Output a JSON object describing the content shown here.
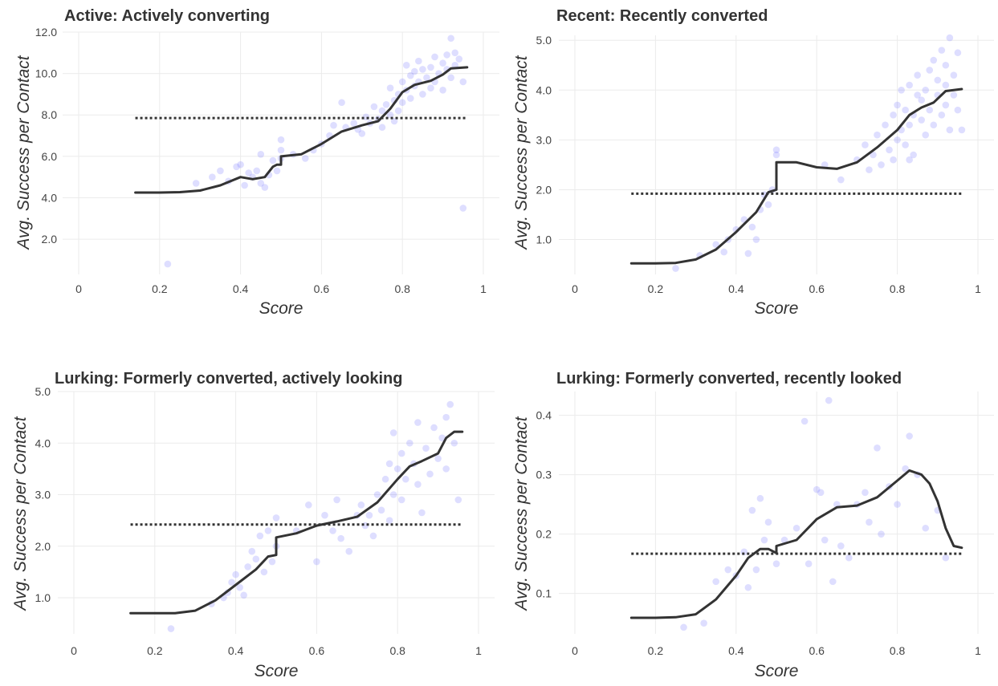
{
  "colors": {
    "point": "#6a6aff",
    "line": "#333333",
    "grid": "#ebebeb"
  },
  "chart_data": [
    {
      "type": "scatter",
      "title": "Active: Actively converting",
      "xlabel": "Score",
      "ylabel": "Avg. Success per Contact",
      "xlim": [
        0,
        1
      ],
      "ylim": [
        0.3,
        12.0
      ],
      "x_ticks": [
        0,
        0.2,
        0.4,
        0.6,
        0.8,
        1
      ],
      "x_tick_labels": [
        "0",
        "0.2",
        "0.4",
        "0.6",
        "0.8",
        "1"
      ],
      "y_ticks": [
        2,
        4,
        6,
        8,
        10,
        12
      ],
      "y_tick_labels": [
        "2.0",
        "4.0",
        "6.0",
        "8.0",
        "10.0",
        "12.0"
      ],
      "grid": true,
      "reference_line": {
        "y": 7.85,
        "x_range": [
          0.14,
          0.96
        ],
        "style": "dotted"
      },
      "trend_line": {
        "x": [
          0.14,
          0.2,
          0.25,
          0.3,
          0.35,
          0.4,
          0.43,
          0.46,
          0.48,
          0.49,
          0.5,
          0.5,
          0.55,
          0.6,
          0.65,
          0.7,
          0.74,
          0.77,
          0.8,
          0.83,
          0.87,
          0.9,
          0.92,
          0.96
        ],
        "y": [
          4.25,
          4.25,
          4.27,
          4.35,
          4.6,
          5.0,
          4.9,
          5.0,
          5.5,
          5.6,
          5.6,
          6.0,
          6.1,
          6.6,
          7.2,
          7.5,
          7.7,
          8.3,
          9.1,
          9.45,
          9.65,
          9.95,
          10.25,
          10.3
        ]
      },
      "points": [
        [
          0.22,
          0.8
        ],
        [
          0.29,
          4.7
        ],
        [
          0.33,
          5.0
        ],
        [
          0.35,
          5.3
        ],
        [
          0.37,
          4.8
        ],
        [
          0.39,
          5.5
        ],
        [
          0.4,
          5.6
        ],
        [
          0.41,
          4.6
        ],
        [
          0.42,
          5.2
        ],
        [
          0.43,
          5.0
        ],
        [
          0.44,
          5.3
        ],
        [
          0.45,
          4.7
        ],
        [
          0.45,
          6.1
        ],
        [
          0.46,
          4.5
        ],
        [
          0.47,
          5.1
        ],
        [
          0.48,
          5.8
        ],
        [
          0.49,
          5.3
        ],
        [
          0.5,
          6.3
        ],
        [
          0.5,
          6.8
        ],
        [
          0.5,
          5.9
        ],
        [
          0.53,
          6.1
        ],
        [
          0.56,
          5.9
        ],
        [
          0.58,
          6.3
        ],
        [
          0.6,
          6.6
        ],
        [
          0.62,
          7.0
        ],
        [
          0.63,
          7.5
        ],
        [
          0.65,
          8.6
        ],
        [
          0.66,
          7.4
        ],
        [
          0.68,
          7.6
        ],
        [
          0.69,
          7.3
        ],
        [
          0.7,
          7.1
        ],
        [
          0.71,
          7.9
        ],
        [
          0.72,
          7.6
        ],
        [
          0.73,
          8.4
        ],
        [
          0.74,
          7.8
        ],
        [
          0.75,
          8.2
        ],
        [
          0.75,
          7.4
        ],
        [
          0.76,
          8.5
        ],
        [
          0.77,
          8.0
        ],
        [
          0.77,
          9.3
        ],
        [
          0.78,
          8.7
        ],
        [
          0.78,
          7.7
        ],
        [
          0.79,
          9.0
        ],
        [
          0.79,
          8.2
        ],
        [
          0.8,
          8.6
        ],
        [
          0.8,
          9.6
        ],
        [
          0.81,
          10.4
        ],
        [
          0.81,
          9.2
        ],
        [
          0.82,
          9.9
        ],
        [
          0.82,
          8.8
        ],
        [
          0.83,
          10.1
        ],
        [
          0.83,
          9.4
        ],
        [
          0.84,
          9.6
        ],
        [
          0.84,
          10.6
        ],
        [
          0.85,
          9.0
        ],
        [
          0.85,
          10.2
        ],
        [
          0.86,
          9.8
        ],
        [
          0.87,
          10.3
        ],
        [
          0.87,
          9.3
        ],
        [
          0.88,
          10.8
        ],
        [
          0.88,
          9.6
        ],
        [
          0.89,
          10.0
        ],
        [
          0.9,
          10.5
        ],
        [
          0.9,
          9.2
        ],
        [
          0.91,
          10.9
        ],
        [
          0.91,
          10.2
        ],
        [
          0.92,
          11.7
        ],
        [
          0.92,
          9.8
        ],
        [
          0.93,
          11.0
        ],
        [
          0.93,
          10.4
        ],
        [
          0.94,
          10.7
        ],
        [
          0.95,
          9.6
        ],
        [
          0.95,
          3.5
        ]
      ]
    },
    {
      "type": "scatter",
      "title": "Recent: Recently converted",
      "xlabel": "Score",
      "ylabel": "Avg. Success per Contact",
      "xlim": [
        0,
        1
      ],
      "ylim": [
        0.3,
        5.1
      ],
      "x_ticks": [
        0,
        0.2,
        0.4,
        0.6,
        0.8,
        1
      ],
      "x_tick_labels": [
        "0",
        "0.2",
        "0.4",
        "0.6",
        "0.8",
        "1"
      ],
      "y_ticks": [
        1,
        2,
        3,
        4,
        5
      ],
      "y_tick_labels": [
        "1.0",
        "2.0",
        "3.0",
        "4.0",
        "5.0"
      ],
      "grid": true,
      "reference_line": {
        "y": 1.92,
        "x_range": [
          0.14,
          0.96
        ],
        "style": "dotted"
      },
      "trend_line": {
        "x": [
          0.14,
          0.2,
          0.25,
          0.3,
          0.35,
          0.4,
          0.45,
          0.48,
          0.5,
          0.5,
          0.55,
          0.6,
          0.65,
          0.7,
          0.75,
          0.8,
          0.83,
          0.86,
          0.89,
          0.92,
          0.96
        ],
        "y": [
          0.52,
          0.52,
          0.53,
          0.6,
          0.8,
          1.15,
          1.55,
          1.95,
          2.0,
          2.55,
          2.55,
          2.45,
          2.42,
          2.55,
          2.85,
          3.2,
          3.5,
          3.65,
          3.75,
          3.98,
          4.02
        ]
      },
      "points": [
        [
          0.25,
          0.42
        ],
        [
          0.31,
          0.68
        ],
        [
          0.35,
          0.9
        ],
        [
          0.37,
          0.75
        ],
        [
          0.38,
          1.0
        ],
        [
          0.4,
          1.2
        ],
        [
          0.42,
          1.4
        ],
        [
          0.43,
          0.72
        ],
        [
          0.44,
          1.25
        ],
        [
          0.45,
          1.0
        ],
        [
          0.46,
          1.6
        ],
        [
          0.47,
          1.9
        ],
        [
          0.48,
          1.7
        ],
        [
          0.49,
          2.0
        ],
        [
          0.5,
          2.8
        ],
        [
          0.5,
          2.7
        ],
        [
          0.62,
          2.5
        ],
        [
          0.66,
          2.2
        ],
        [
          0.7,
          2.6
        ],
        [
          0.72,
          2.9
        ],
        [
          0.73,
          2.4
        ],
        [
          0.74,
          2.7
        ],
        [
          0.75,
          3.1
        ],
        [
          0.76,
          2.5
        ],
        [
          0.77,
          3.3
        ],
        [
          0.78,
          2.8
        ],
        [
          0.79,
          3.5
        ],
        [
          0.8,
          3.0
        ],
        [
          0.8,
          3.7
        ],
        [
          0.81,
          3.2
        ],
        [
          0.81,
          4.0
        ],
        [
          0.82,
          2.9
        ],
        [
          0.82,
          3.6
        ],
        [
          0.83,
          3.3
        ],
        [
          0.83,
          4.1
        ],
        [
          0.84,
          3.5
        ],
        [
          0.84,
          2.7
        ],
        [
          0.85,
          3.9
        ],
        [
          0.85,
          4.3
        ],
        [
          0.86,
          3.4
        ],
        [
          0.86,
          3.8
        ],
        [
          0.87,
          4.0
        ],
        [
          0.87,
          3.1
        ],
        [
          0.88,
          4.4
        ],
        [
          0.88,
          3.6
        ],
        [
          0.89,
          4.6
        ],
        [
          0.89,
          3.3
        ],
        [
          0.9,
          3.9
        ],
        [
          0.9,
          4.2
        ],
        [
          0.91,
          3.5
        ],
        [
          0.91,
          4.8
        ],
        [
          0.92,
          4.1
        ],
        [
          0.92,
          3.7
        ],
        [
          0.92,
          4.5
        ],
        [
          0.93,
          5.05
        ],
        [
          0.93,
          3.2
        ],
        [
          0.94,
          4.3
        ],
        [
          0.94,
          3.9
        ],
        [
          0.95,
          4.75
        ],
        [
          0.95,
          3.6
        ],
        [
          0.96,
          3.2
        ],
        [
          0.79,
          2.6
        ],
        [
          0.83,
          2.6
        ]
      ]
    },
    {
      "type": "scatter",
      "title": "Lurking: Formerly converted, actively looking",
      "xlabel": "Score",
      "ylabel": "Avg. Success per Contact",
      "xlim": [
        0,
        1
      ],
      "ylim": [
        0.3,
        5.0
      ],
      "x_ticks": [
        0,
        0.2,
        0.4,
        0.6,
        0.8,
        1
      ],
      "x_tick_labels": [
        "0",
        "0.2",
        "0.4",
        "0.6",
        "0.8",
        "1"
      ],
      "y_ticks": [
        1,
        2,
        3,
        4,
        5
      ],
      "y_tick_labels": [
        "1.0",
        "2.0",
        "3.0",
        "4.0",
        "5.0"
      ],
      "grid": true,
      "reference_line": {
        "y": 2.42,
        "x_range": [
          0.14,
          0.96
        ],
        "style": "dotted"
      },
      "trend_line": {
        "x": [
          0.14,
          0.2,
          0.25,
          0.3,
          0.35,
          0.4,
          0.45,
          0.48,
          0.5,
          0.5,
          0.55,
          0.6,
          0.65,
          0.7,
          0.75,
          0.8,
          0.83,
          0.86,
          0.9,
          0.92,
          0.94,
          0.96
        ],
        "y": [
          0.7,
          0.7,
          0.7,
          0.75,
          0.95,
          1.25,
          1.55,
          1.8,
          1.83,
          2.17,
          2.25,
          2.4,
          2.48,
          2.57,
          2.85,
          3.3,
          3.55,
          3.65,
          3.8,
          4.1,
          4.22,
          4.22
        ]
      },
      "points": [
        [
          0.24,
          0.4
        ],
        [
          0.34,
          0.88
        ],
        [
          0.37,
          1.0
        ],
        [
          0.38,
          1.1
        ],
        [
          0.39,
          1.3
        ],
        [
          0.4,
          1.45
        ],
        [
          0.41,
          1.2
        ],
        [
          0.42,
          1.05
        ],
        [
          0.43,
          1.6
        ],
        [
          0.44,
          1.9
        ],
        [
          0.45,
          1.75
        ],
        [
          0.46,
          2.2
        ],
        [
          0.47,
          1.5
        ],
        [
          0.48,
          2.3
        ],
        [
          0.49,
          1.7
        ],
        [
          0.5,
          2.55
        ],
        [
          0.5,
          2.0
        ],
        [
          0.55,
          2.3
        ],
        [
          0.58,
          2.8
        ],
        [
          0.6,
          1.7
        ],
        [
          0.62,
          2.6
        ],
        [
          0.64,
          2.3
        ],
        [
          0.65,
          2.9
        ],
        [
          0.66,
          2.15
        ],
        [
          0.68,
          1.9
        ],
        [
          0.7,
          2.6
        ],
        [
          0.71,
          2.8
        ],
        [
          0.72,
          2.4
        ],
        [
          0.73,
          2.6
        ],
        [
          0.74,
          2.2
        ],
        [
          0.75,
          3.0
        ],
        [
          0.76,
          2.7
        ],
        [
          0.77,
          3.3
        ],
        [
          0.78,
          2.5
        ],
        [
          0.78,
          3.6
        ],
        [
          0.79,
          3.0
        ],
        [
          0.79,
          4.2
        ],
        [
          0.8,
          3.5
        ],
        [
          0.81,
          3.8
        ],
        [
          0.81,
          2.9
        ],
        [
          0.82,
          3.3
        ],
        [
          0.83,
          4.0
        ],
        [
          0.84,
          3.6
        ],
        [
          0.85,
          4.4
        ],
        [
          0.85,
          3.2
        ],
        [
          0.86,
          2.65
        ],
        [
          0.87,
          3.9
        ],
        [
          0.88,
          3.4
        ],
        [
          0.89,
          4.3
        ],
        [
          0.9,
          3.7
        ],
        [
          0.91,
          4.1
        ],
        [
          0.92,
          3.5
        ],
        [
          0.92,
          4.5
        ],
        [
          0.93,
          4.75
        ],
        [
          0.94,
          4.0
        ],
        [
          0.95,
          2.9
        ]
      ]
    },
    {
      "type": "scatter",
      "title": "Lurking: Formerly converted, recently looked",
      "xlabel": "Score",
      "ylabel": "Avg. Success per Contact",
      "xlim": [
        0,
        1
      ],
      "ylim": [
        0.032,
        0.44
      ],
      "x_ticks": [
        0,
        0.2,
        0.4,
        0.6,
        0.8,
        1
      ],
      "x_tick_labels": [
        "0",
        "0.2",
        "0.4",
        "0.6",
        "0.8",
        "1"
      ],
      "y_ticks": [
        0.1,
        0.2,
        0.3,
        0.4
      ],
      "y_tick_labels": [
        "0.1",
        "0.2",
        "0.3",
        "0.4"
      ],
      "grid": true,
      "reference_line": {
        "y": 0.167,
        "x_range": [
          0.14,
          0.96
        ],
        "style": "dotted"
      },
      "trend_line": {
        "x": [
          0.14,
          0.2,
          0.25,
          0.3,
          0.35,
          0.4,
          0.43,
          0.46,
          0.48,
          0.5,
          0.5,
          0.55,
          0.6,
          0.65,
          0.7,
          0.75,
          0.8,
          0.83,
          0.86,
          0.88,
          0.9,
          0.92,
          0.94,
          0.96
        ],
        "y": [
          0.059,
          0.059,
          0.06,
          0.065,
          0.09,
          0.13,
          0.16,
          0.175,
          0.175,
          0.168,
          0.18,
          0.19,
          0.225,
          0.245,
          0.248,
          0.262,
          0.29,
          0.307,
          0.3,
          0.285,
          0.255,
          0.21,
          0.18,
          0.177
        ]
      },
      "points": [
        [
          0.27,
          0.043
        ],
        [
          0.32,
          0.05
        ],
        [
          0.35,
          0.12
        ],
        [
          0.38,
          0.14
        ],
        [
          0.4,
          0.13
        ],
        [
          0.42,
          0.17
        ],
        [
          0.43,
          0.11
        ],
        [
          0.44,
          0.24
        ],
        [
          0.45,
          0.14
        ],
        [
          0.46,
          0.26
        ],
        [
          0.47,
          0.19
        ],
        [
          0.48,
          0.22
        ],
        [
          0.5,
          0.15
        ],
        [
          0.52,
          0.19
        ],
        [
          0.55,
          0.21
        ],
        [
          0.57,
          0.39
        ],
        [
          0.58,
          0.15
        ],
        [
          0.6,
          0.275
        ],
        [
          0.61,
          0.27
        ],
        [
          0.62,
          0.19
        ],
        [
          0.63,
          0.425
        ],
        [
          0.64,
          0.12
        ],
        [
          0.65,
          0.25
        ],
        [
          0.66,
          0.18
        ],
        [
          0.68,
          0.16
        ],
        [
          0.7,
          0.25
        ],
        [
          0.72,
          0.27
        ],
        [
          0.73,
          0.22
        ],
        [
          0.75,
          0.345
        ],
        [
          0.76,
          0.2
        ],
        [
          0.78,
          0.28
        ],
        [
          0.8,
          0.25
        ],
        [
          0.82,
          0.31
        ],
        [
          0.83,
          0.365
        ],
        [
          0.85,
          0.3
        ],
        [
          0.87,
          0.21
        ],
        [
          0.9,
          0.24
        ],
        [
          0.92,
          0.16
        ]
      ]
    }
  ]
}
